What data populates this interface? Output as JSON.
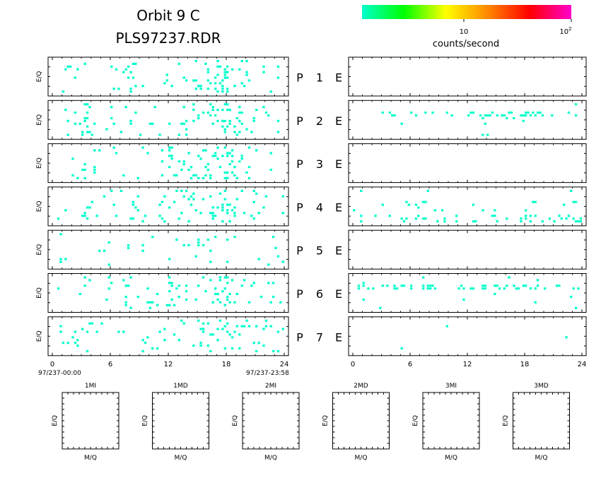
{
  "header": {
    "title_line1": "Orbit 9 C",
    "title_line2": "PLS97237.RDR"
  },
  "colorbar": {
    "colors": [
      "#00ffcc",
      "#00ff00",
      "#ffff00",
      "#ff8800",
      "#ff0000",
      "#ff00cc"
    ],
    "tick_label_mid": "10",
    "tick_label_end_base": "10",
    "tick_label_end_exp": "2",
    "label": "counts/second"
  },
  "chart_data": {
    "type": "heatmap",
    "x_ticks": [
      "0",
      "6",
      "12",
      "18",
      "24"
    ],
    "xlim": [
      0,
      24
    ],
    "ylabel": "E/Q",
    "time_start_label": "97/237-00:00",
    "time_end_label": "97/237-23:58",
    "point_color": "#00ffcc",
    "rows": [
      {
        "p_label": "P",
        "num": "1",
        "e_label": "E",
        "p_activity": [
          [
            1.5,
            0.22
          ],
          [
            3.5,
            0.16
          ],
          [
            6.5,
            0.28
          ],
          [
            8.2,
            0.55
          ],
          [
            12.5,
            0.18
          ],
          [
            14.0,
            0.45
          ],
          [
            15.0,
            0.55
          ],
          [
            16.0,
            0.6
          ],
          [
            17.0,
            0.68
          ],
          [
            18.0,
            0.92
          ],
          [
            19.0,
            0.6
          ],
          [
            20.0,
            0.4
          ],
          [
            22.0,
            0.22
          ],
          [
            23.5,
            0.18
          ]
        ],
        "e_activity": []
      },
      {
        "p_label": "P",
        "num": "2",
        "e_label": "E",
        "p_activity": [
          [
            1.5,
            0.25
          ],
          [
            3.5,
            0.38
          ],
          [
            5.5,
            0.3
          ],
          [
            8.0,
            0.45
          ],
          [
            10.5,
            0.2
          ],
          [
            13.5,
            0.45
          ],
          [
            15.0,
            0.55
          ],
          [
            16.5,
            0.62
          ],
          [
            17.5,
            0.7
          ],
          [
            18.2,
            0.95
          ],
          [
            19.0,
            0.65
          ],
          [
            20.5,
            0.3
          ],
          [
            23.0,
            0.22
          ]
        ],
        "e_activity": [
          [
            2.5,
            0.25
          ],
          [
            4.0,
            0.55
          ],
          [
            5.5,
            0.45
          ],
          [
            7.5,
            0.6
          ],
          [
            9.5,
            0.3
          ],
          [
            12.5,
            0.85
          ],
          [
            14.5,
            0.95
          ],
          [
            16.5,
            0.9
          ],
          [
            18.0,
            0.98
          ],
          [
            19.5,
            0.7
          ],
          [
            21.5,
            0.3
          ],
          [
            23.5,
            0.4
          ]
        ]
      },
      {
        "p_label": "P",
        "num": "3",
        "e_label": "E",
        "p_activity": [
          [
            1.5,
            0.2
          ],
          [
            3.5,
            0.35
          ],
          [
            4.5,
            0.4
          ],
          [
            6.5,
            0.22
          ],
          [
            9.5,
            0.28
          ],
          [
            12.5,
            0.45
          ],
          [
            13.5,
            0.55
          ],
          [
            15.0,
            0.65
          ],
          [
            16.5,
            0.7
          ],
          [
            17.5,
            0.75
          ],
          [
            18.2,
            0.95
          ],
          [
            19.0,
            0.7
          ],
          [
            20.0,
            0.4
          ],
          [
            22.5,
            0.2
          ]
        ],
        "e_activity": []
      },
      {
        "p_label": "P",
        "num": "4",
        "e_label": "E",
        "p_activity": [
          [
            1.5,
            0.2
          ],
          [
            4.0,
            0.28
          ],
          [
            6.5,
            0.22
          ],
          [
            8.5,
            0.32
          ],
          [
            11.5,
            0.28
          ],
          [
            13.0,
            0.35
          ],
          [
            14.5,
            0.5
          ],
          [
            16.5,
            0.55
          ],
          [
            18.0,
            0.92
          ],
          [
            19.0,
            0.6
          ],
          [
            21.0,
            0.3
          ],
          [
            23.5,
            0.35
          ]
        ],
        "e_activity": [
          [
            1.0,
            0.45
          ],
          [
            3.0,
            0.5
          ],
          [
            5.0,
            0.55
          ],
          [
            7.5,
            0.55
          ],
          [
            10.0,
            0.5
          ],
          [
            12.5,
            0.55
          ],
          [
            14.0,
            0.65
          ],
          [
            15.5,
            0.7
          ],
          [
            17.5,
            0.78
          ],
          [
            18.5,
            0.9
          ],
          [
            20.0,
            0.55
          ],
          [
            22.0,
            0.5
          ],
          [
            23.5,
            0.7
          ]
        ]
      },
      {
        "p_label": "P",
        "num": "5",
        "e_label": "E",
        "p_activity": [
          [
            1.0,
            0.2
          ],
          [
            4.5,
            0.15
          ],
          [
            6.0,
            0.18
          ],
          [
            8.5,
            0.2
          ],
          [
            10.5,
            0.15
          ],
          [
            12.5,
            0.18
          ],
          [
            14.0,
            0.28
          ],
          [
            15.0,
            0.32
          ],
          [
            16.0,
            0.35
          ],
          [
            17.5,
            0.22
          ],
          [
            18.2,
            0.3
          ],
          [
            21.0,
            0.12
          ],
          [
            23.5,
            0.15
          ]
        ],
        "e_activity": []
      },
      {
        "p_label": "P",
        "num": "6",
        "e_label": "E",
        "p_activity": [
          [
            1.0,
            0.18
          ],
          [
            3.0,
            0.22
          ],
          [
            5.5,
            0.2
          ],
          [
            8.0,
            0.25
          ],
          [
            10.5,
            0.3
          ],
          [
            12.5,
            0.45
          ],
          [
            14.0,
            0.5
          ],
          [
            15.5,
            0.6
          ],
          [
            17.0,
            0.7
          ],
          [
            18.0,
            0.92
          ],
          [
            19.0,
            0.62
          ],
          [
            20.5,
            0.35
          ],
          [
            23.0,
            0.25
          ]
        ],
        "e_activity": [
          [
            1.0,
            0.3
          ],
          [
            3.5,
            0.55
          ],
          [
            4.5,
            0.8
          ],
          [
            6.0,
            0.7
          ],
          [
            7.5,
            0.75
          ],
          [
            9.0,
            0.4
          ],
          [
            12.0,
            0.7
          ],
          [
            13.5,
            0.8
          ],
          [
            15.5,
            0.85
          ],
          [
            17.0,
            0.9
          ],
          [
            18.3,
            0.98
          ],
          [
            19.5,
            0.55
          ],
          [
            21.5,
            0.3
          ],
          [
            23.5,
            0.45
          ]
        ]
      },
      {
        "p_label": "P",
        "num": "7",
        "e_label": "E",
        "p_activity": [
          [
            1.0,
            0.2
          ],
          [
            3.0,
            0.35
          ],
          [
            4.5,
            0.28
          ],
          [
            7.0,
            0.22
          ],
          [
            9.5,
            0.25
          ],
          [
            11.5,
            0.3
          ],
          [
            13.0,
            0.4
          ],
          [
            15.0,
            0.5
          ],
          [
            16.5,
            0.55
          ],
          [
            17.5,
            0.62
          ],
          [
            18.2,
            0.85
          ],
          [
            19.5,
            0.4
          ],
          [
            21.5,
            0.25
          ],
          [
            23.5,
            0.3
          ]
        ],
        "e_activity": [
          [
            5.0,
            0.12
          ],
          [
            11.0,
            0.1
          ],
          [
            18.0,
            0.25
          ],
          [
            19.5,
            0.12
          ],
          [
            23.5,
            0.18
          ]
        ]
      }
    ]
  },
  "mass_panels": [
    {
      "title": "1MI",
      "xlabel": "M/Q",
      "ylabel": "E/Q"
    },
    {
      "title": "1MD",
      "xlabel": "M/Q",
      "ylabel": "E/Q"
    },
    {
      "title": "2MI",
      "xlabel": "M/Q",
      "ylabel": "E/Q"
    },
    {
      "title": "2MD",
      "xlabel": "M/Q",
      "ylabel": "E/Q"
    },
    {
      "title": "3MI",
      "xlabel": "M/Q",
      "ylabel": "E/Q"
    },
    {
      "title": "3MD",
      "xlabel": "M/Q",
      "ylabel": "E/Q"
    }
  ]
}
